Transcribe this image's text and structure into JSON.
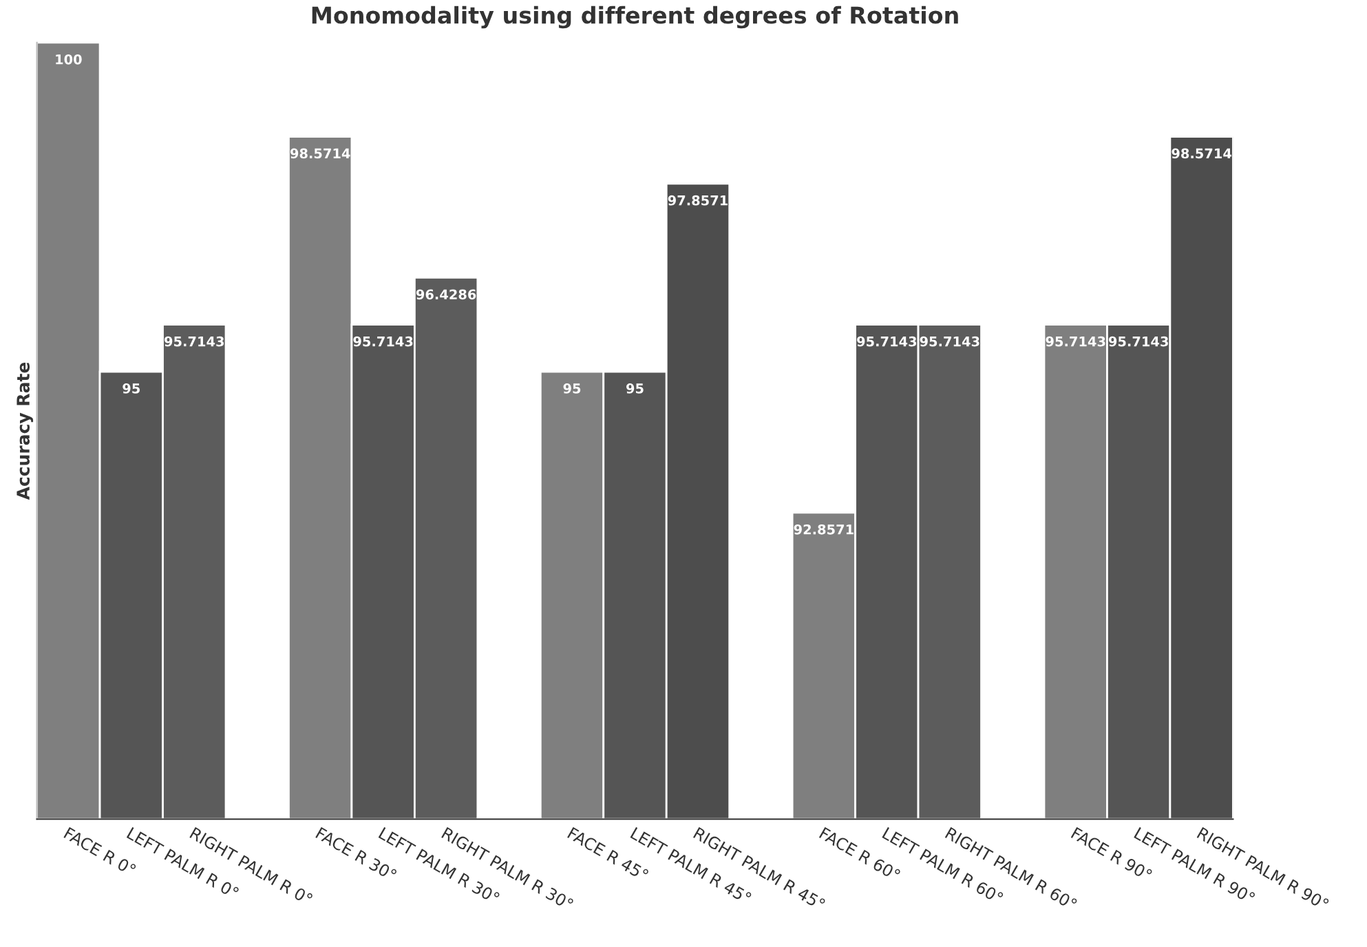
{
  "chart_data": {
    "type": "bar",
    "title": "Monomodality using different degrees of Rotation",
    "ylabel": "Accuracy Rate",
    "categories": [
      "FACE R 0°",
      "LEFT PALM R 0°",
      "RIGHT PALM R 0°",
      null,
      "FACE R 30°",
      "LEFT PALM R 30°",
      "RIGHT PALM R 30°",
      null,
      "FACE R 45°",
      "LEFT PALM R 45°",
      "RIGHT PALM R 45°",
      null,
      "FACE R 60°",
      "LEFT PALM R 60°",
      "RIGHT PALM R 60°",
      null,
      "FACE R 90°",
      "LEFT PALM R 90°",
      "RIGHT PALM R 90°"
    ],
    "values": [
      100,
      95,
      95.7143,
      null,
      98.5714,
      95.7143,
      96.4286,
      null,
      95,
      95,
      97.8571,
      null,
      92.8571,
      95.7143,
      95.7143,
      null,
      95.7143,
      95.7143,
      98.5714
    ],
    "colors": [
      "#7f7f7f",
      "#555555",
      "#5c5c5c",
      null,
      "#7f7f7f",
      "#555555",
      "#5c5c5c",
      null,
      "#7f7f7f",
      "#555555",
      "#4d4d4d",
      null,
      "#7f7f7f",
      "#555555",
      "#5c5c5c",
      null,
      "#7f7f7f",
      "#555555",
      "#4d4d4d"
    ],
    "ylim": [
      88.2,
      100
    ],
    "data_labels": true,
    "tick_labels": "x",
    "grid": false,
    "legend": false
  }
}
